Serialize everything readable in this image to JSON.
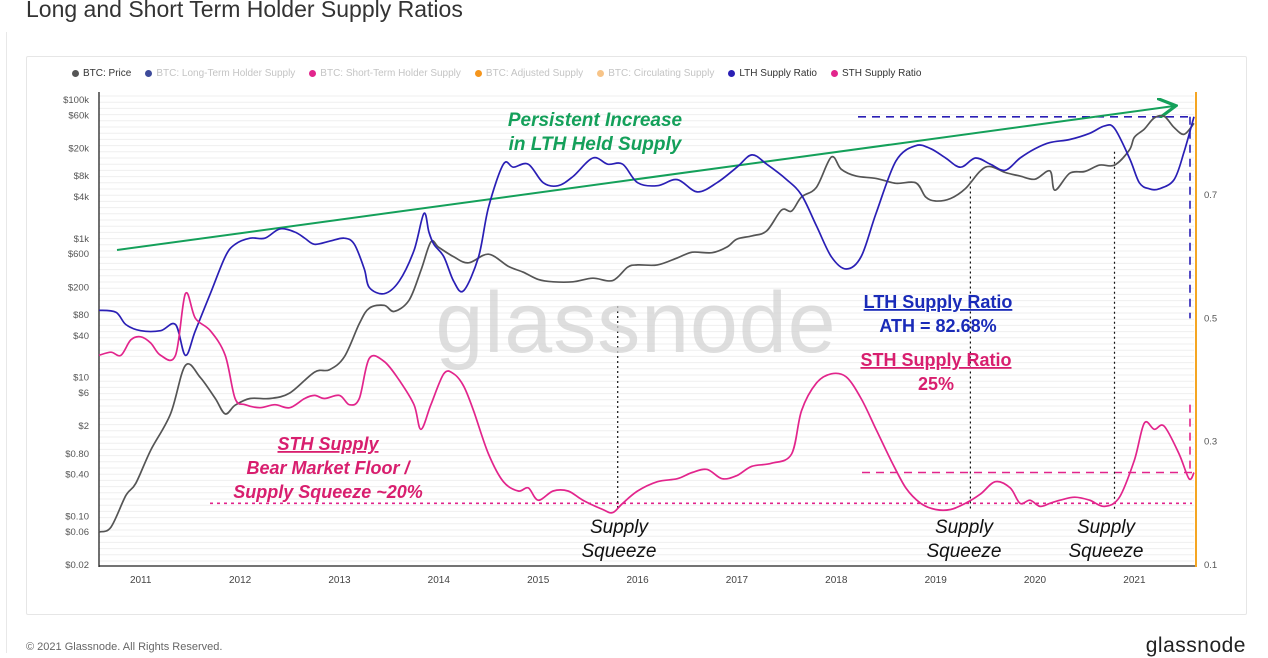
{
  "page": {
    "title": "Long and Short Term Holder Supply Ratios",
    "footer": "© 2021 Glassnode. All Rights Reserved.",
    "brand": "glassnode"
  },
  "legend": [
    {
      "label": "BTC: Price",
      "color": "#555555",
      "muted": false
    },
    {
      "label": "BTC: Long-Term Holder Supply",
      "color": "#3d4a9a",
      "muted": true
    },
    {
      "label": "BTC: Short-Term Holder Supply",
      "color": "#e2258c",
      "muted": true
    },
    {
      "label": "BTC: Adjusted Supply",
      "color": "#f5951c",
      "muted": true
    },
    {
      "label": "BTC: Circulating Supply",
      "color": "#f7c488",
      "muted": true
    },
    {
      "label": "LTH Supply Ratio",
      "color": "#2a1fb5",
      "muted": false
    },
    {
      "label": "STH Supply Ratio",
      "color": "#e2258c",
      "muted": false
    }
  ],
  "annotations": {
    "trend_line1": "Persistent Increase",
    "trend_line2": "in LTH Held Supply",
    "lth_title": "LTH Supply Ratio",
    "lth_value": "ATH = 82.68%",
    "sth_title": "STH Supply Ratio",
    "sth_value": "25%",
    "floor_line1": "STH Supply",
    "floor_line2": "Bear Market Floor /",
    "floor_line3": "Supply Squeeze ~20%",
    "squeeze_word1": "Supply",
    "squeeze_word2": "Squeeze"
  },
  "colors": {
    "price": "#555555",
    "lth": "#2a1fb5",
    "sth": "#e2258c",
    "trend": "#14a05a",
    "lth_label": "#1a2bb8",
    "sth_label": "#d81e6e",
    "axis_accent": "#f5a623"
  },
  "chart_data": {
    "type": "line",
    "x_axis": {
      "type": "time",
      "range": [
        2010.58,
        2021.6
      ],
      "ticks": [
        "2011",
        "2012",
        "2013",
        "2014",
        "2015",
        "2016",
        "2017",
        "2018",
        "2019",
        "2020",
        "2021"
      ]
    },
    "y_left": {
      "scale": "log",
      "range": [
        0.02,
        130000
      ],
      "ticks": [
        {
          "v": 100000,
          "label": "$100k"
        },
        {
          "v": 60000,
          "label": "$60k"
        },
        {
          "v": 20000,
          "label": "$20k"
        },
        {
          "v": 8000,
          "label": "$8k"
        },
        {
          "v": 4000,
          "label": "$4k"
        },
        {
          "v": 1000,
          "label": "$1k"
        },
        {
          "v": 600,
          "label": "$600"
        },
        {
          "v": 200,
          "label": "$200"
        },
        {
          "v": 80,
          "label": "$80"
        },
        {
          "v": 40,
          "label": "$40"
        },
        {
          "v": 10,
          "label": "$10"
        },
        {
          "v": 6,
          "label": "$6"
        },
        {
          "v": 2,
          "label": "$2"
        },
        {
          "v": 0.8,
          "label": "$0.80"
        },
        {
          "v": 0.4,
          "label": "$0.40"
        },
        {
          "v": 0.1,
          "label": "$0.10"
        },
        {
          "v": 0.06,
          "label": "$0.06"
        },
        {
          "v": 0.02,
          "label": "$0.02"
        }
      ]
    },
    "y_right": {
      "scale": "linear",
      "range": [
        0.1,
        0.867
      ],
      "ticks": [
        {
          "v": 0.7,
          "label": "0.7"
        },
        {
          "v": 0.5,
          "label": "0.5"
        },
        {
          "v": 0.3,
          "label": "0.3"
        },
        {
          "v": 0.1,
          "label": "0.1"
        }
      ]
    },
    "grid": true,
    "series": [
      {
        "name": "BTC: Price",
        "axis": "left",
        "points": [
          [
            2010.58,
            0.06
          ],
          [
            2010.7,
            0.07
          ],
          [
            2010.85,
            0.2
          ],
          [
            2010.95,
            0.3
          ],
          [
            2011.1,
            0.9
          ],
          [
            2011.3,
            3
          ],
          [
            2011.45,
            15
          ],
          [
            2011.6,
            10
          ],
          [
            2011.75,
            5
          ],
          [
            2011.85,
            3
          ],
          [
            2011.95,
            4
          ],
          [
            2012.1,
            5
          ],
          [
            2012.3,
            5
          ],
          [
            2012.5,
            6
          ],
          [
            2012.75,
            12
          ],
          [
            2012.9,
            13
          ],
          [
            2013.05,
            20
          ],
          [
            2013.2,
            60
          ],
          [
            2013.3,
            100
          ],
          [
            2013.45,
            110
          ],
          [
            2013.55,
            90
          ],
          [
            2013.7,
            130
          ],
          [
            2013.82,
            350
          ],
          [
            2013.92,
            900
          ],
          [
            2014.0,
            750
          ],
          [
            2014.15,
            550
          ],
          [
            2014.3,
            450
          ],
          [
            2014.5,
            600
          ],
          [
            2014.7,
            400
          ],
          [
            2014.85,
            330
          ],
          [
            2015.0,
            260
          ],
          [
            2015.15,
            240
          ],
          [
            2015.35,
            240
          ],
          [
            2015.55,
            270
          ],
          [
            2015.75,
            250
          ],
          [
            2015.9,
            390
          ],
          [
            2016.0,
            420
          ],
          [
            2016.2,
            420
          ],
          [
            2016.4,
            530
          ],
          [
            2016.55,
            640
          ],
          [
            2016.75,
            630
          ],
          [
            2016.9,
            760
          ],
          [
            2017.0,
            990
          ],
          [
            2017.15,
            1100
          ],
          [
            2017.3,
            1300
          ],
          [
            2017.45,
            2600
          ],
          [
            2017.55,
            2500
          ],
          [
            2017.65,
            4000
          ],
          [
            2017.8,
            5500
          ],
          [
            2017.95,
            15000
          ],
          [
            2018.05,
            10000
          ],
          [
            2018.2,
            8000
          ],
          [
            2018.4,
            7400
          ],
          [
            2018.6,
            6300
          ],
          [
            2018.8,
            6400
          ],
          [
            2018.9,
            4000
          ],
          [
            2019.0,
            3500
          ],
          [
            2019.15,
            3800
          ],
          [
            2019.3,
            5300
          ],
          [
            2019.45,
            9500
          ],
          [
            2019.55,
            11000
          ],
          [
            2019.7,
            9000
          ],
          [
            2019.85,
            8000
          ],
          [
            2020.0,
            7200
          ],
          [
            2020.15,
            9500
          ],
          [
            2020.2,
            5000
          ],
          [
            2020.35,
            8800
          ],
          [
            2020.5,
            9300
          ],
          [
            2020.65,
            11500
          ],
          [
            2020.8,
            11500
          ],
          [
            2020.95,
            19000
          ],
          [
            2021.0,
            29000
          ],
          [
            2021.1,
            38000
          ],
          [
            2021.2,
            55000
          ],
          [
            2021.3,
            58000
          ],
          [
            2021.4,
            40000
          ],
          [
            2021.5,
            32000
          ],
          [
            2021.6,
            46000
          ]
        ]
      },
      {
        "name": "LTH Supply Ratio",
        "axis": "right",
        "points": [
          [
            2010.58,
            0.513
          ],
          [
            2010.75,
            0.51
          ],
          [
            2010.85,
            0.49
          ],
          [
            2011.0,
            0.48
          ],
          [
            2011.2,
            0.48
          ],
          [
            2011.35,
            0.49
          ],
          [
            2011.45,
            0.44
          ],
          [
            2011.55,
            0.48
          ],
          [
            2011.7,
            0.54
          ],
          [
            2011.85,
            0.6
          ],
          [
            2011.95,
            0.62
          ],
          [
            2012.1,
            0.63
          ],
          [
            2012.25,
            0.63
          ],
          [
            2012.4,
            0.645
          ],
          [
            2012.55,
            0.64
          ],
          [
            2012.65,
            0.63
          ],
          [
            2012.75,
            0.62
          ],
          [
            2012.9,
            0.625
          ],
          [
            2013.05,
            0.63
          ],
          [
            2013.15,
            0.62
          ],
          [
            2013.25,
            0.58
          ],
          [
            2013.3,
            0.55
          ],
          [
            2013.45,
            0.54
          ],
          [
            2013.6,
            0.56
          ],
          [
            2013.75,
            0.61
          ],
          [
            2013.85,
            0.67
          ],
          [
            2013.9,
            0.64
          ],
          [
            2013.95,
            0.62
          ],
          [
            2014.05,
            0.6
          ],
          [
            2014.15,
            0.56
          ],
          [
            2014.25,
            0.545
          ],
          [
            2014.4,
            0.6
          ],
          [
            2014.5,
            0.68
          ],
          [
            2014.65,
            0.75
          ],
          [
            2014.75,
            0.745
          ],
          [
            2014.9,
            0.75
          ],
          [
            2015.05,
            0.72
          ],
          [
            2015.2,
            0.715
          ],
          [
            2015.35,
            0.73
          ],
          [
            2015.55,
            0.76
          ],
          [
            2015.7,
            0.75
          ],
          [
            2015.85,
            0.75
          ],
          [
            2016.0,
            0.72
          ],
          [
            2016.2,
            0.715
          ],
          [
            2016.4,
            0.725
          ],
          [
            2016.6,
            0.705
          ],
          [
            2016.8,
            0.72
          ],
          [
            2017.0,
            0.745
          ],
          [
            2017.15,
            0.765
          ],
          [
            2017.3,
            0.75
          ],
          [
            2017.5,
            0.725
          ],
          [
            2017.65,
            0.7
          ],
          [
            2017.8,
            0.65
          ],
          [
            2017.95,
            0.6
          ],
          [
            2018.1,
            0.58
          ],
          [
            2018.25,
            0.6
          ],
          [
            2018.4,
            0.67
          ],
          [
            2018.6,
            0.755
          ],
          [
            2018.8,
            0.78
          ],
          [
            2018.95,
            0.775
          ],
          [
            2019.1,
            0.76
          ],
          [
            2019.25,
            0.745
          ],
          [
            2019.4,
            0.76
          ],
          [
            2019.55,
            0.75
          ],
          [
            2019.7,
            0.74
          ],
          [
            2019.85,
            0.76
          ],
          [
            2020.0,
            0.775
          ],
          [
            2020.15,
            0.785
          ],
          [
            2020.35,
            0.79
          ],
          [
            2020.55,
            0.8
          ],
          [
            2020.7,
            0.812
          ],
          [
            2020.8,
            0.808
          ],
          [
            2020.95,
            0.76
          ],
          [
            2021.05,
            0.72
          ],
          [
            2021.15,
            0.71
          ],
          [
            2021.25,
            0.71
          ],
          [
            2021.4,
            0.725
          ],
          [
            2021.5,
            0.77
          ],
          [
            2021.6,
            0.827
          ]
        ]
      },
      {
        "name": "STH Supply Ratio",
        "axis": "right",
        "points": [
          [
            2010.58,
            0.44
          ],
          [
            2010.7,
            0.445
          ],
          [
            2010.8,
            0.44
          ],
          [
            2010.9,
            0.465
          ],
          [
            2011.0,
            0.47
          ],
          [
            2011.1,
            0.46
          ],
          [
            2011.2,
            0.44
          ],
          [
            2011.35,
            0.44
          ],
          [
            2011.45,
            0.54
          ],
          [
            2011.55,
            0.5
          ],
          [
            2011.7,
            0.48
          ],
          [
            2011.85,
            0.44
          ],
          [
            2011.95,
            0.37
          ],
          [
            2012.05,
            0.36
          ],
          [
            2012.2,
            0.355
          ],
          [
            2012.35,
            0.36
          ],
          [
            2012.5,
            0.355
          ],
          [
            2012.65,
            0.37
          ],
          [
            2012.75,
            0.375
          ],
          [
            2012.85,
            0.37
          ],
          [
            2013.0,
            0.375
          ],
          [
            2013.1,
            0.36
          ],
          [
            2013.2,
            0.37
          ],
          [
            2013.3,
            0.435
          ],
          [
            2013.45,
            0.43
          ],
          [
            2013.6,
            0.4
          ],
          [
            2013.75,
            0.36
          ],
          [
            2013.82,
            0.32
          ],
          [
            2013.92,
            0.36
          ],
          [
            2014.05,
            0.41
          ],
          [
            2014.15,
            0.41
          ],
          [
            2014.25,
            0.39
          ],
          [
            2014.35,
            0.35
          ],
          [
            2014.5,
            0.28
          ],
          [
            2014.65,
            0.235
          ],
          [
            2014.8,
            0.22
          ],
          [
            2014.9,
            0.225
          ],
          [
            2015.0,
            0.205
          ],
          [
            2015.15,
            0.22
          ],
          [
            2015.3,
            0.22
          ],
          [
            2015.45,
            0.205
          ],
          [
            2015.65,
            0.19
          ],
          [
            2015.75,
            0.185
          ],
          [
            2015.85,
            0.2
          ],
          [
            2016.0,
            0.22
          ],
          [
            2016.2,
            0.235
          ],
          [
            2016.4,
            0.24
          ],
          [
            2016.55,
            0.25
          ],
          [
            2016.7,
            0.255
          ],
          [
            2016.85,
            0.24
          ],
          [
            2017.0,
            0.245
          ],
          [
            2017.15,
            0.26
          ],
          [
            2017.35,
            0.265
          ],
          [
            2017.55,
            0.28
          ],
          [
            2017.65,
            0.35
          ],
          [
            2017.8,
            0.395
          ],
          [
            2017.95,
            0.41
          ],
          [
            2018.1,
            0.405
          ],
          [
            2018.25,
            0.37
          ],
          [
            2018.4,
            0.32
          ],
          [
            2018.55,
            0.27
          ],
          [
            2018.7,
            0.225
          ],
          [
            2018.85,
            0.2
          ],
          [
            2019.0,
            0.19
          ],
          [
            2019.15,
            0.19
          ],
          [
            2019.3,
            0.2
          ],
          [
            2019.45,
            0.215
          ],
          [
            2019.6,
            0.235
          ],
          [
            2019.75,
            0.225
          ],
          [
            2019.85,
            0.2
          ],
          [
            2019.95,
            0.205
          ],
          [
            2020.05,
            0.195
          ],
          [
            2020.15,
            0.2
          ],
          [
            2020.25,
            0.205
          ],
          [
            2020.4,
            0.21
          ],
          [
            2020.55,
            0.205
          ],
          [
            2020.7,
            0.195
          ],
          [
            2020.85,
            0.21
          ],
          [
            2021.0,
            0.27
          ],
          [
            2021.1,
            0.33
          ],
          [
            2021.2,
            0.32
          ],
          [
            2021.3,
            0.325
          ],
          [
            2021.45,
            0.28
          ],
          [
            2021.55,
            0.24
          ],
          [
            2021.6,
            0.25
          ]
        ]
      }
    ],
    "reference_lines": [
      {
        "axis": "right",
        "value": 0.8268,
        "color": "#2a1fb5",
        "style": "dashed"
      },
      {
        "axis": "right",
        "value": 0.25,
        "color": "#e2258c",
        "style": "dashed"
      },
      {
        "axis": "right",
        "value": 0.2,
        "color": "#e2258c",
        "style": "dotted"
      }
    ]
  }
}
